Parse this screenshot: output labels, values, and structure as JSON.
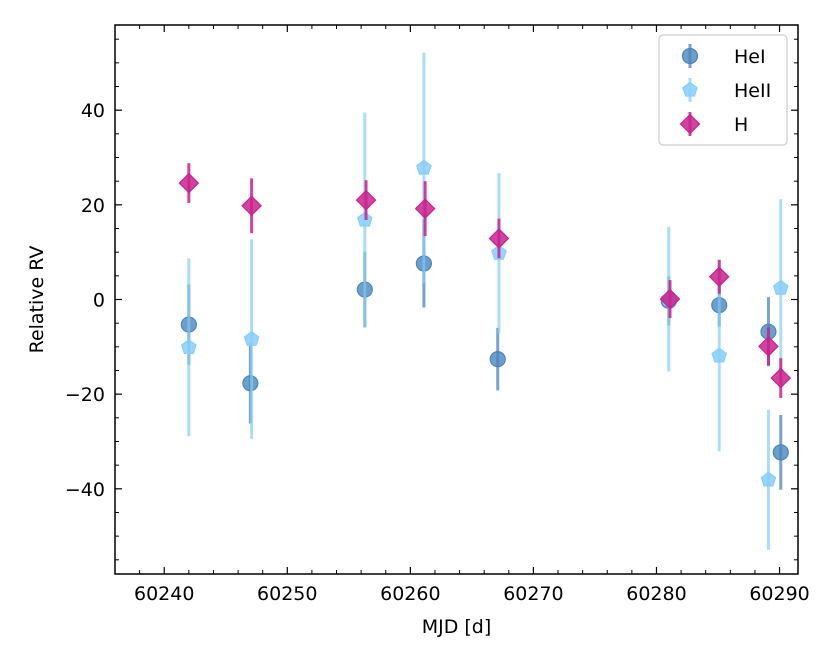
{
  "chart_data": {
    "type": "scatter",
    "xlabel": "MJD [d]",
    "ylabel": "Relative RV",
    "xlim": [
      60236,
      60291.5
    ],
    "ylim": [
      -58,
      58
    ],
    "xticks": [
      60240,
      60250,
      60260,
      60270,
      60280,
      60290
    ],
    "yticks": [
      -40,
      -20,
      0,
      20,
      40
    ],
    "ytick_labels": [
      "−40",
      "−20",
      "0",
      "20",
      "40"
    ],
    "minor_x_step": 2,
    "minor_y_step": 5,
    "legend_position": "top-right",
    "series": [
      {
        "name": "HeI",
        "marker": "circle",
        "color": "#4a86bd",
        "points": [
          {
            "x": 60242,
            "y": -5.3,
            "err": 8.5
          },
          {
            "x": 60247,
            "y": -17.7,
            "err": 8.5
          },
          {
            "x": 60256.3,
            "y": 2.1,
            "err": 8.0
          },
          {
            "x": 60261.1,
            "y": 7.6,
            "err": 9.3
          },
          {
            "x": 60267.1,
            "y": -12.6,
            "err": 6.6
          },
          {
            "x": 60281,
            "y": -0.3,
            "err": 5.2
          },
          {
            "x": 60285.1,
            "y": -1.2,
            "err": 4.5
          },
          {
            "x": 60289.1,
            "y": -6.8,
            "err": 7.3
          },
          {
            "x": 60290.1,
            "y": -32.3,
            "err": 7.9
          }
        ]
      },
      {
        "name": "HeII",
        "marker": "pentagon",
        "color": "#87cefa",
        "points": [
          {
            "x": 60242,
            "y": -10.1,
            "err": 18.8
          },
          {
            "x": 60247.1,
            "y": -8.4,
            "err": 21.1
          },
          {
            "x": 60256.3,
            "y": 16.8,
            "err": 22.7
          },
          {
            "x": 60261.1,
            "y": 27.8,
            "err": 24.4
          },
          {
            "x": 60267.2,
            "y": 9.8,
            "err": 16.9
          },
          {
            "x": 60281,
            "y": 0.1,
            "err": 15.3
          },
          {
            "x": 60285.1,
            "y": -11.9,
            "err": 20.2
          },
          {
            "x": 60289.1,
            "y": -38.1,
            "err": 14.8
          },
          {
            "x": 60290.1,
            "y": 2.4,
            "err": 18.8
          }
        ]
      },
      {
        "name": "H",
        "marker": "diamond",
        "color": "#c8238e",
        "points": [
          {
            "x": 60242,
            "y": 24.6,
            "err": 4.2
          },
          {
            "x": 60247.1,
            "y": 19.8,
            "err": 5.8
          },
          {
            "x": 60256.4,
            "y": 21.0,
            "err": 4.2
          },
          {
            "x": 60261.2,
            "y": 19.2,
            "err": 5.8
          },
          {
            "x": 60267.2,
            "y": 12.9,
            "err": 4.2
          },
          {
            "x": 60281.1,
            "y": 0.1,
            "err": 4.0
          },
          {
            "x": 60285.1,
            "y": 4.8,
            "err": 3.6
          },
          {
            "x": 60289.1,
            "y": -9.9,
            "err": 4.0
          },
          {
            "x": 60290.1,
            "y": -16.6,
            "err": 4.2
          }
        ]
      }
    ]
  }
}
